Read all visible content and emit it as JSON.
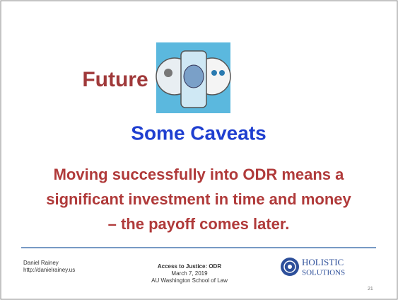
{
  "slide": {
    "title": "Future",
    "subtitle": "Some Caveats",
    "body": [
      "Moving successfully into ODR means a",
      "significant investment in time and money",
      "– the payoff comes later."
    ],
    "footer": {
      "left": [
        "Daniel Rainey",
        "http://danielrainey.us"
      ],
      "center": [
        "Access to Justice:  ODR",
        "March 7, 2019",
        "AU Washington School of Law"
      ],
      "logo": [
        "HOLISTIC",
        "SOLUTIONS"
      ],
      "page": "21"
    }
  }
}
